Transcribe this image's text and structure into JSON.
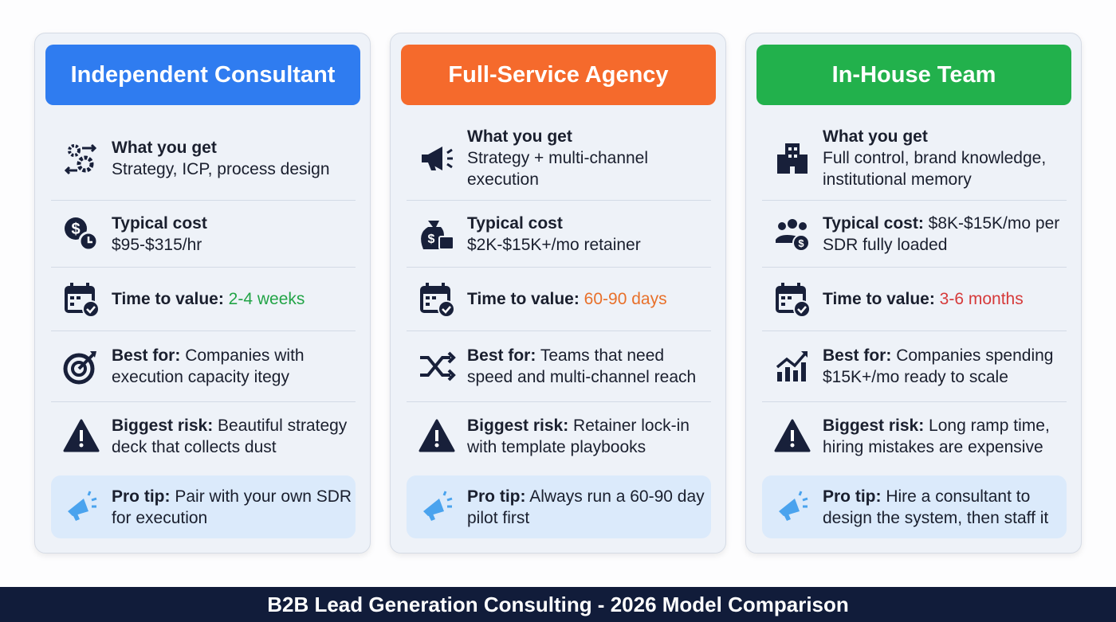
{
  "cards": [
    {
      "title": "Independent Consultant",
      "color": "#2f7cf0",
      "what_label": "What you get",
      "what_value": "Strategy, ICP, process design",
      "cost_label": "Typical cost",
      "cost_value": "$95-$315/hr",
      "time_label": "Time to value:",
      "time_value": "2-4 weeks",
      "time_color": "#22a447",
      "best_label": "Best for:",
      "best_value": "Companies with execution capacity itegy",
      "risk_label": "Biggest risk:",
      "risk_value": "Beautiful strategy deck that collects dust",
      "tip_label": "Pro tip:",
      "tip_value": "Pair with your own SDR for execution"
    },
    {
      "title": "Full-Service Agency",
      "color": "#f56a2c",
      "what_label": "What you get",
      "what_value": "Strategy + multi-channel execution",
      "cost_label": "Typical cost",
      "cost_value": "$2K-$15K+/mo retainer",
      "time_label": "Time to value:",
      "time_value": "60-90 days",
      "time_color": "#e8702a",
      "best_label": "Best for:",
      "best_value": "Teams that need speed and multi-channel reach",
      "risk_label": "Biggest risk:",
      "risk_value": "Retainer lock-in with template playbooks",
      "tip_label": "Pro tip:",
      "tip_value": "Always run a 60-90 day pilot first"
    },
    {
      "title": "In-House Team",
      "color": "#22b14c",
      "what_label": "What you get",
      "what_value": "Full control, brand knowledge, institutional memory",
      "cost_label": "Typical cost:",
      "cost_value": "$8K-$15K/mo per SDR fully loaded",
      "time_label": "Time to value:",
      "time_value": "3-6 months",
      "time_color": "#d63a3a",
      "best_label": "Best for:",
      "best_value": "Companies spending $15K+/mo ready to scale",
      "risk_label": "Biggest risk:",
      "risk_value": "Long ramp time, hiring mistakes are expensive",
      "tip_label": "Pro tip:",
      "tip_value": "Hire a consultant to design the system, then staff it"
    }
  ],
  "footer": "B2B Lead Generation Consulting - 2026 Model Comparison"
}
